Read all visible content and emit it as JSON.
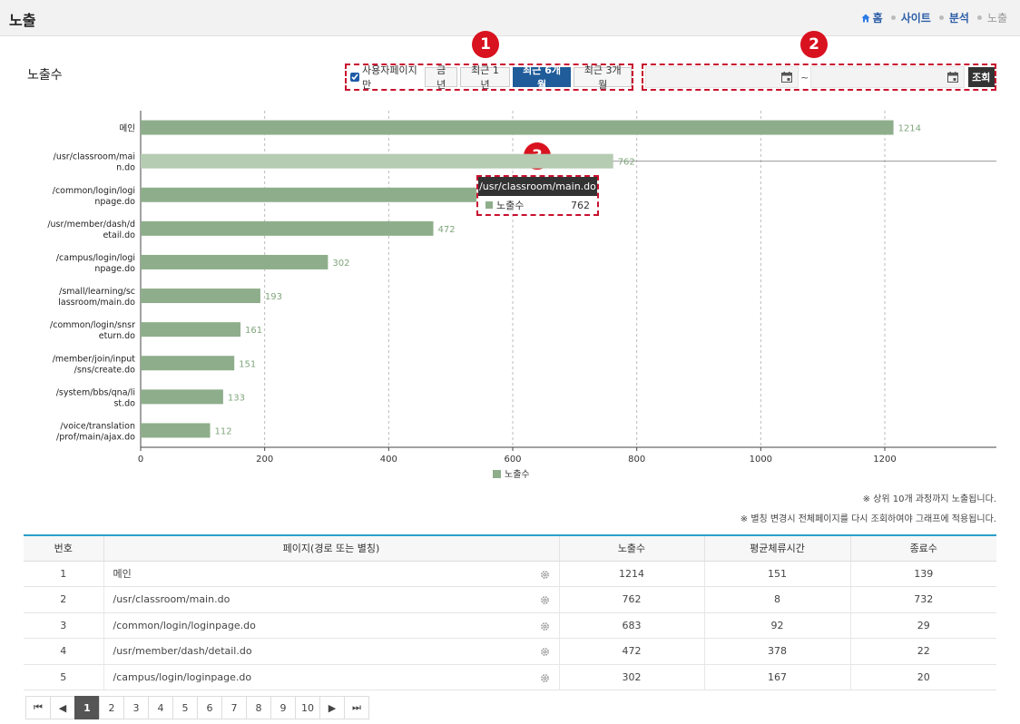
{
  "header": {
    "title": "노출",
    "breadcrumb": [
      "홈",
      "사이트",
      "분석",
      "노출"
    ]
  },
  "section_title": "노출수",
  "filters": {
    "user_page_only_label": "사용자페이지만",
    "user_page_only_checked": true,
    "buttons": [
      {
        "label": "금년",
        "active": false
      },
      {
        "label": "최근 1년",
        "active": false
      },
      {
        "label": "최근 6개월",
        "active": true
      },
      {
        "label": "최근 3개월",
        "active": false
      }
    ]
  },
  "date_range": {
    "start": "",
    "separator": "~",
    "end": "",
    "search_label": "조회"
  },
  "badges": [
    "1",
    "2",
    "3"
  ],
  "chart_data": {
    "type": "bar",
    "orientation": "horizontal",
    "categories": [
      "메인",
      "/usr/classroom/main.do",
      "/common/login/loginpage.do",
      "/usr/member/dash/detail.do",
      "/campus/login/loginpage.do",
      "/small/learning/sclassroom/main.do",
      "/common/login/snsreturn.do",
      "/member/join/input/sns/create.do",
      "/system/bbs/qna/list.do",
      "/voice/translation/prof/main/ajax.do"
    ],
    "category_label_lines": [
      [
        "메인"
      ],
      [
        "/usr/classroom/mai",
        "n.do"
      ],
      [
        "/common/login/logi",
        "npage.do"
      ],
      [
        "/usr/member/dash/d",
        "etail.do"
      ],
      [
        "/campus/login/logi",
        "npage.do"
      ],
      [
        "/small/learning/sc",
        "lassroom/main.do"
      ],
      [
        "/common/login/snsr",
        "eturn.do"
      ],
      [
        "/member/join/input",
        "/sns/create.do"
      ],
      [
        "/system/bbs/qna/li",
        "st.do"
      ],
      [
        "/voice/translation",
        "/prof/main/ajax.do"
      ]
    ],
    "series": [
      {
        "name": "노출수",
        "values": [
          1214,
          762,
          683,
          472,
          302,
          193,
          161,
          151,
          133,
          112
        ],
        "color": "#8eae8b",
        "highlight_color": "#b5cbb2"
      }
    ],
    "data_labels": [
      "1214",
      "762",
      "",
      "472",
      "302",
      "193",
      "161",
      "151",
      "133",
      "112"
    ],
    "xlim": [
      0,
      1380
    ],
    "xticks": [
      0,
      200,
      400,
      600,
      800,
      1000,
      1200
    ],
    "grid": "vertical-dashed",
    "legend": "bottom-center",
    "hovered_index": 1
  },
  "tooltip": {
    "title": "/usr/classroom/main.do",
    "series_name": "노출수",
    "value": "762"
  },
  "notes": [
    "※ 상위 10개 과정까지 노출됩니다.",
    "※ 별칭 변경시 전체페이지를 다시 조회하여야 그래프에 적용됩니다."
  ],
  "table": {
    "columns": [
      "번호",
      "페이지(경로 또는 별칭)",
      "노출수",
      "평균체류시간",
      "종료수"
    ],
    "rows": [
      [
        "1",
        "메인",
        "1214",
        "151",
        "139"
      ],
      [
        "2",
        "/usr/classroom/main.do",
        "762",
        "8",
        "732"
      ],
      [
        "3",
        "/common/login/loginpage.do",
        "683",
        "92",
        "29"
      ],
      [
        "4",
        "/usr/member/dash/detail.do",
        "472",
        "378",
        "22"
      ],
      [
        "5",
        "/campus/login/loginpage.do",
        "302",
        "167",
        "20"
      ]
    ]
  },
  "pagination": {
    "first": "⏮",
    "prev": "◀",
    "pages": [
      "1",
      "2",
      "3",
      "4",
      "5",
      "6",
      "7",
      "8",
      "9",
      "10"
    ],
    "current": "1",
    "next": "▶",
    "last": "⏭"
  }
}
